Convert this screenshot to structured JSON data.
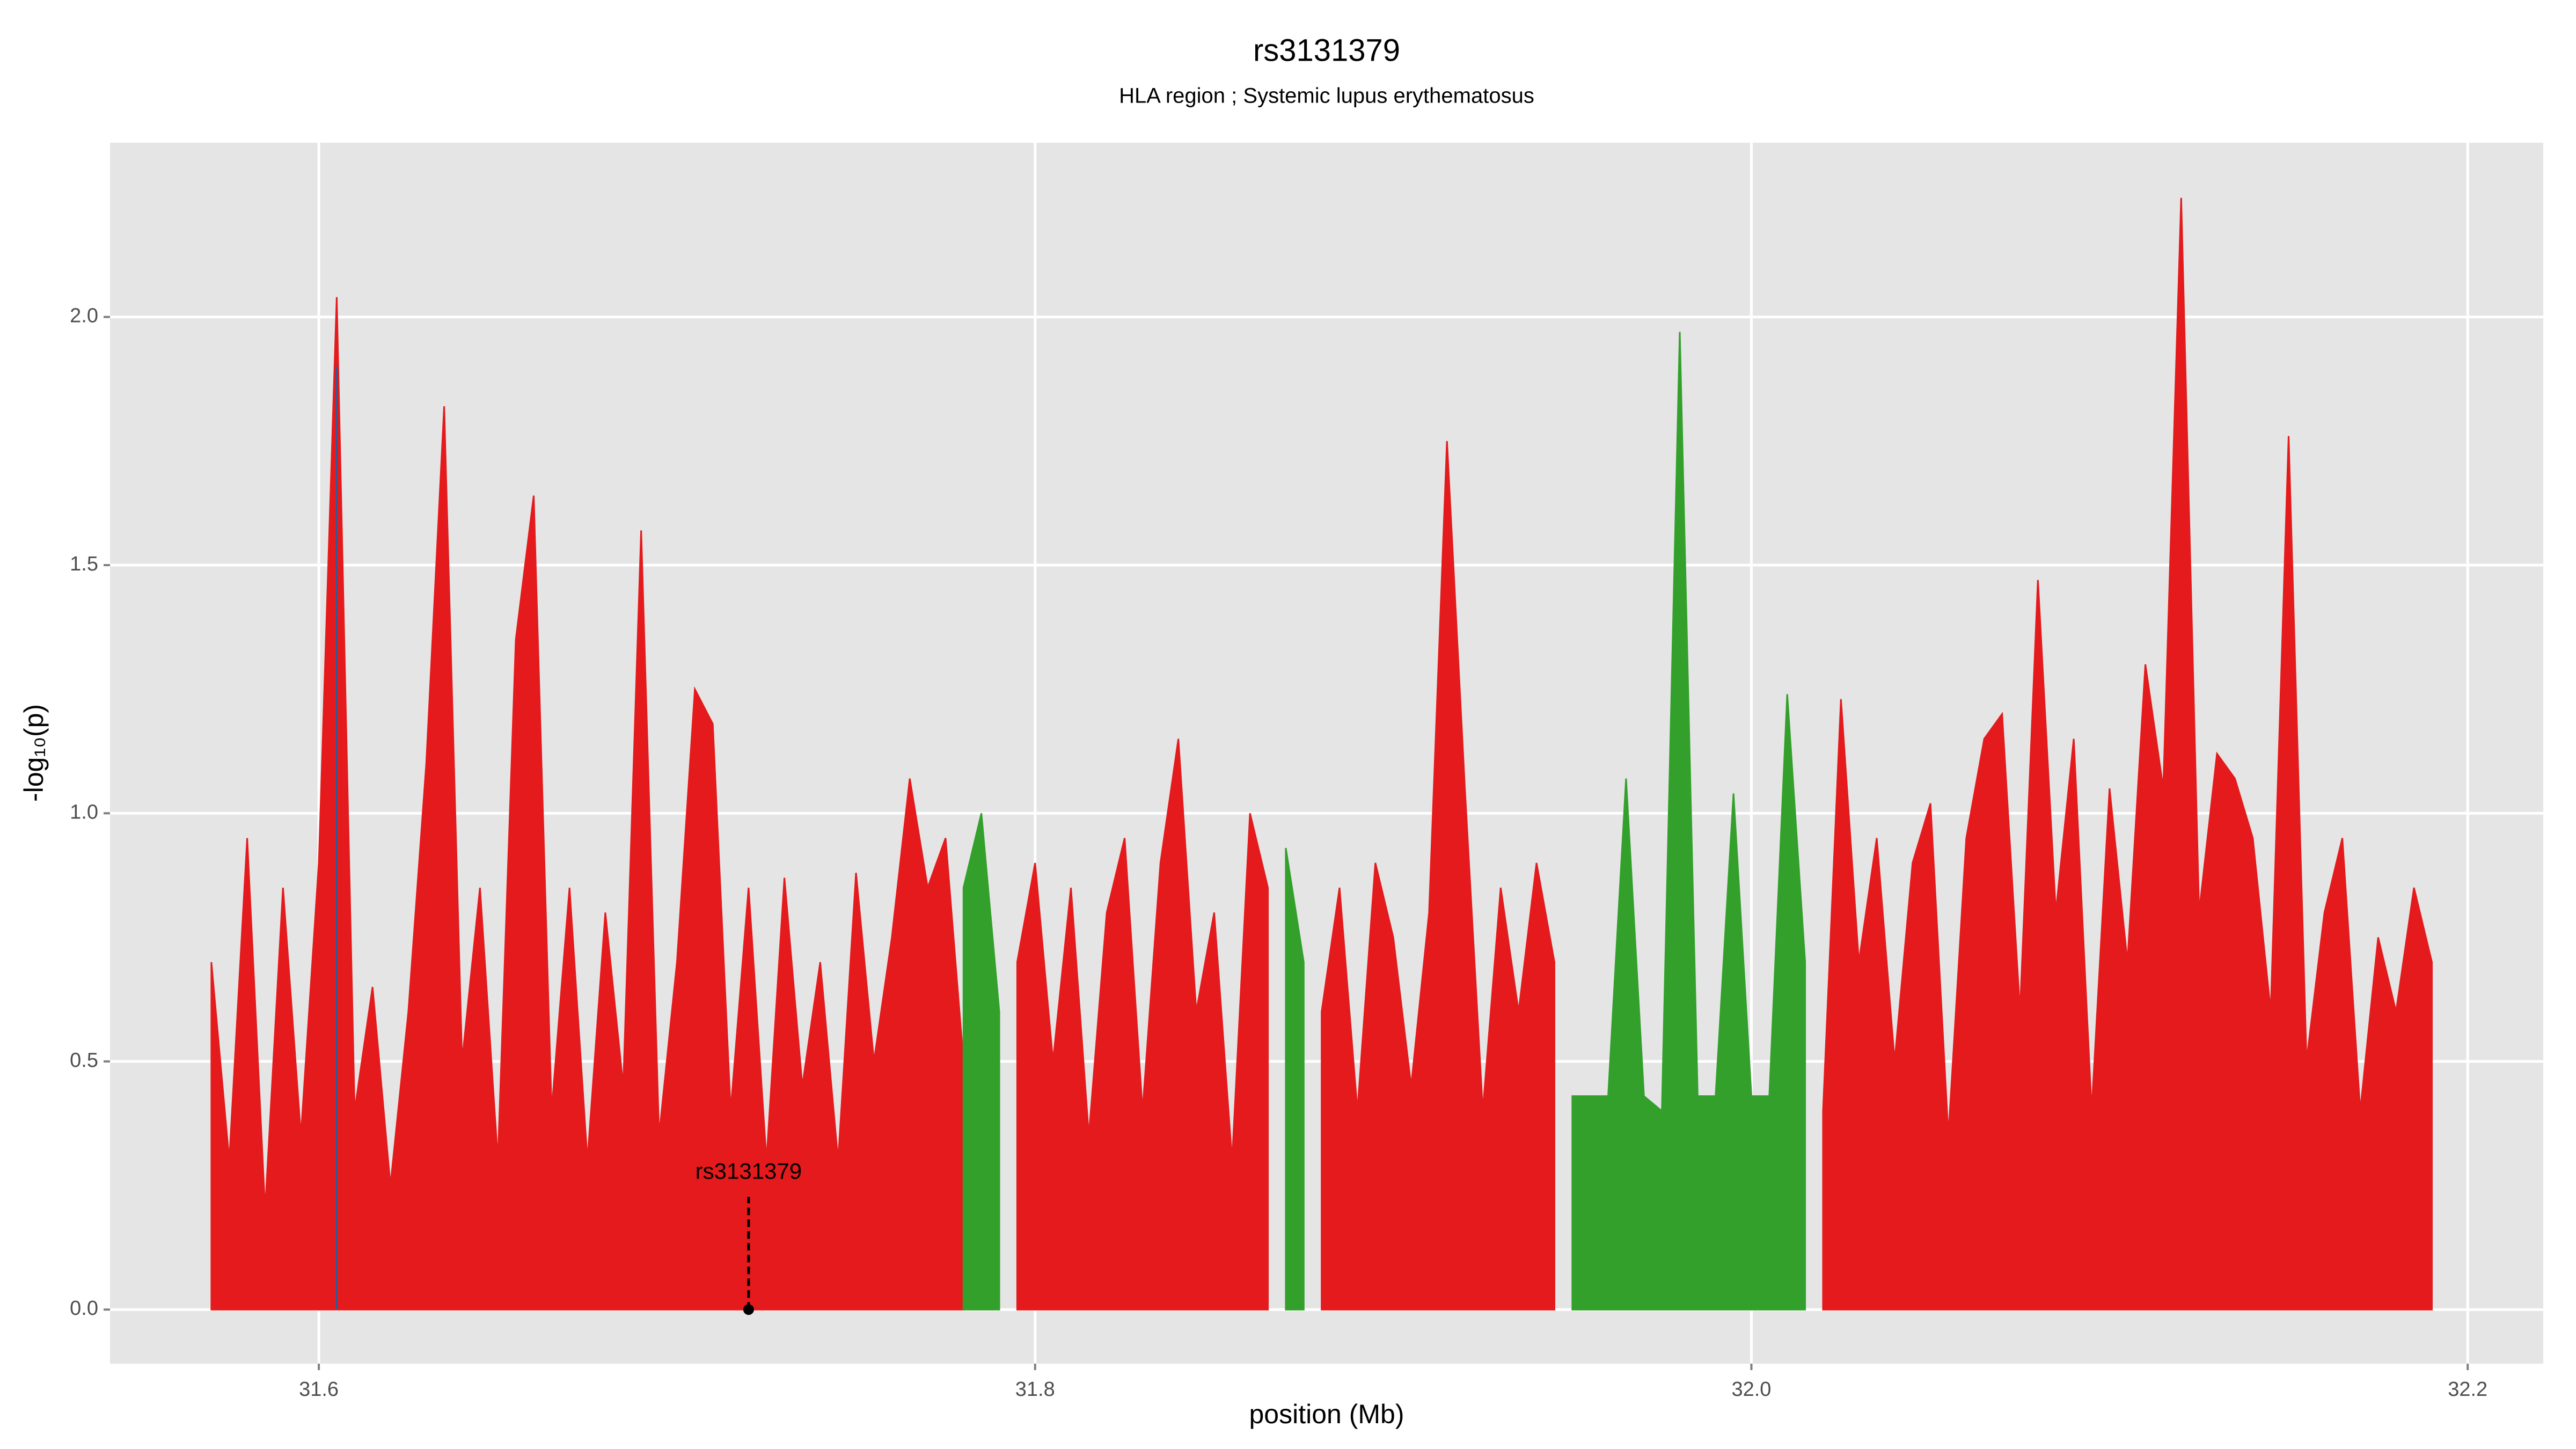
{
  "chart_data": {
    "type": "area",
    "title": "rs3131379",
    "subtitle": "HLA region ; Systemic lupus erythematosus",
    "xlabel": "position (Mb)",
    "ylabel": "-log₁₀(p)",
    "x": [
      31.57,
      31.575,
      31.58,
      31.585,
      31.59,
      31.595,
      31.6,
      31.605,
      31.61,
      31.615,
      31.62,
      31.625,
      31.63,
      31.635,
      31.64,
      31.645,
      31.65,
      31.655,
      31.66,
      31.665,
      31.67,
      31.675,
      31.68,
      31.685,
      31.69,
      31.695,
      31.7,
      31.705,
      31.71,
      31.715,
      31.72,
      31.725,
      31.73,
      31.735,
      31.74,
      31.745,
      31.75,
      31.755,
      31.76,
      31.765,
      31.77,
      31.775,
      31.78,
      31.785,
      31.79,
      31.795,
      31.8,
      31.805,
      31.81,
      31.815,
      31.82,
      31.825,
      31.83,
      31.835,
      31.84,
      31.845,
      31.85,
      31.855,
      31.86,
      31.865,
      31.87,
      31.875,
      31.88,
      31.885,
      31.89,
      31.895,
      31.9,
      31.905,
      31.91,
      31.915,
      31.92,
      31.925,
      31.93,
      31.935,
      31.94,
      31.945,
      31.95,
      31.955,
      31.96,
      31.965,
      31.97,
      31.975,
      31.98,
      31.985,
      31.99,
      31.995,
      32.0,
      32.005,
      32.01,
      32.015,
      32.02,
      32.025,
      32.03,
      32.035,
      32.04,
      32.045,
      32.05,
      32.055,
      32.06,
      32.065,
      32.07,
      32.075,
      32.08,
      32.085,
      32.09,
      32.095,
      32.1,
      32.105,
      32.11,
      32.115,
      32.12,
      32.125,
      32.13,
      32.135,
      32.14,
      32.145,
      32.15,
      32.155,
      32.16,
      32.165,
      32.17,
      32.175,
      32.18,
      32.185,
      32.19
    ],
    "series": [
      {
        "color": "#e41a1c",
        "values": [
          0.7,
          0.3,
          0.95,
          0.2,
          0.85,
          0.35,
          0.9,
          2.04,
          0.4,
          0.65,
          0.25,
          0.6,
          1.1,
          1.82,
          0.5,
          0.85,
          0.3,
          1.35,
          1.64,
          0.4,
          0.85,
          0.3,
          0.8,
          0.45,
          1.57,
          0.35,
          0.7,
          1.25,
          1.18,
          0.4,
          0.85,
          0.3,
          0.87,
          0.45,
          0.7,
          0.3,
          0.88,
          0.5,
          0.75,
          1.07,
          0.85,
          0.95,
          0.5,
          null,
          null,
          0.7,
          0.9,
          0.5,
          0.85,
          0.35,
          0.8,
          0.95,
          0.4,
          0.9,
          1.15,
          0.6,
          0.8,
          0.3,
          1.0,
          0.85,
          null,
          null,
          0.6,
          0.85,
          0.4,
          0.9,
          0.75,
          0.45,
          0.8,
          1.75,
          1.05,
          0.4,
          0.85,
          0.6,
          0.9,
          0.7,
          null,
          null,
          null,
          null,
          null,
          null,
          null,
          null,
          null,
          null,
          null,
          null,
          null,
          null,
          0.4,
          1.23,
          0.7,
          0.95,
          0.5,
          0.9,
          1.02,
          0.35,
          0.95,
          1.15,
          1.2,
          0.6,
          1.47,
          0.8,
          1.15,
          0.4,
          1.05,
          0.7,
          1.3,
          1.05,
          2.24,
          0.8,
          1.12,
          1.07,
          0.95,
          0.6,
          1.76,
          0.5,
          0.8,
          0.95,
          0.4,
          0.75,
          0.6,
          0.85,
          0.7
        ]
      },
      {
        "color": "#33a02c",
        "values": [
          null,
          null,
          null,
          null,
          null,
          null,
          null,
          null,
          null,
          null,
          null,
          null,
          null,
          null,
          null,
          null,
          null,
          null,
          null,
          null,
          null,
          null,
          null,
          null,
          null,
          null,
          null,
          null,
          null,
          null,
          null,
          null,
          null,
          null,
          null,
          null,
          null,
          null,
          null,
          null,
          null,
          null,
          0.85,
          1.0,
          0.6,
          null,
          null,
          null,
          null,
          null,
          null,
          null,
          null,
          null,
          null,
          null,
          null,
          null,
          null,
          null,
          0.93,
          0.7,
          null,
          null,
          null,
          null,
          null,
          null,
          null,
          null,
          null,
          null,
          null,
          null,
          null,
          null,
          0.43,
          0.43,
          0.43,
          1.07,
          0.43,
          0.4,
          1.97,
          0.43,
          0.43,
          1.04,
          0.43,
          0.43,
          1.24,
          0.7,
          null,
          null,
          null,
          null,
          null,
          null,
          null,
          null,
          null,
          null,
          null,
          null,
          null,
          null,
          null,
          null,
          null,
          null,
          null,
          null,
          null,
          null,
          null,
          null,
          null,
          null,
          null,
          null,
          null,
          null,
          null,
          null,
          null,
          null,
          null
        ]
      },
      {
        "color": "#1f5fa0",
        "values": [
          null,
          null,
          null,
          null,
          null,
          null,
          null,
          1.9,
          null,
          null,
          null,
          null,
          null,
          null,
          null,
          null,
          null,
          null,
          null,
          null,
          null,
          null,
          null,
          null,
          null,
          null,
          null,
          null,
          null,
          null,
          null,
          null,
          null,
          null,
          null,
          null,
          null,
          null,
          null,
          null,
          null,
          null,
          null,
          null,
          null,
          null,
          null,
          null,
          null,
          null,
          null,
          null,
          null,
          null,
          null,
          null,
          null,
          null,
          null,
          null,
          null,
          null,
          null,
          null,
          null,
          null,
          null,
          null,
          null,
          null,
          null,
          null,
          null,
          null,
          null,
          null,
          null,
          null,
          null,
          null,
          null,
          null,
          null,
          null,
          null,
          null,
          null,
          null,
          null,
          null,
          null,
          null,
          null,
          null,
          null,
          null,
          null,
          null,
          null,
          null,
          null,
          null,
          null,
          null,
          null,
          null,
          null,
          null,
          null,
          null,
          null,
          null,
          null,
          null,
          null,
          null,
          null,
          null,
          null,
          null,
          null,
          null,
          null,
          null,
          null
        ]
      }
    ],
    "annotation": {
      "label": "rs3131379",
      "x": 31.72,
      "y": 0
    },
    "xlim": [
      31.5417,
      32.2211
    ],
    "ylim": [
      -0.109,
      2.351
    ],
    "xticks": [
      31.6,
      31.8,
      {
        "value": 32.0,
        "label": "32.0"
      },
      32.2
    ],
    "yticks": [
      {
        "value": 0,
        "label": "0.0"
      },
      {
        "value": 0.5,
        "label": "0.5"
      },
      {
        "value": 1,
        "label": "1.0"
      },
      {
        "value": 1.5,
        "label": "1.5"
      },
      {
        "value": 2,
        "label": "2.0"
      }
    ],
    "grid": true
  }
}
